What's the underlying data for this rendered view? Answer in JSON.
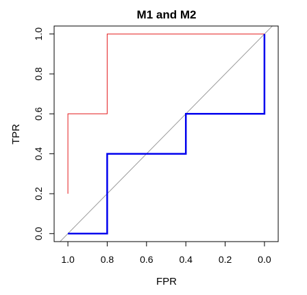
{
  "chart_data": {
    "type": "line",
    "title": "M1 and M2",
    "xlabel": "FPR",
    "ylabel": "TPR",
    "x_reversed": true,
    "xlim": [
      1.07,
      -0.07
    ],
    "ylim": [
      -0.04,
      1.04
    ],
    "x_ticks": [
      1.0,
      0.8,
      0.6,
      0.4,
      0.2,
      0.0
    ],
    "x_tick_labels": [
      "1.0",
      "0.8",
      "0.6",
      "0.4",
      "0.2",
      "0.0"
    ],
    "y_ticks": [
      0.0,
      0.2,
      0.4,
      0.6,
      0.8,
      1.0
    ],
    "y_tick_labels": [
      "0.0",
      "0.2",
      "0.4",
      "0.6",
      "0.8",
      "1.0"
    ],
    "grid": false,
    "series": [
      {
        "color": "#e31a1c",
        "line_width": 1,
        "x": [
          1.0,
          1.0,
          0.8,
          0.8,
          0.0
        ],
        "y": [
          0.2,
          0.6,
          0.6,
          1.0,
          1.0
        ]
      },
      {
        "color": "#0000ee",
        "line_width": 2.5,
        "x": [
          1.0,
          0.8,
          0.8,
          0.4,
          0.4,
          0.0,
          0.0
        ],
        "y": [
          0.0,
          0.0,
          0.4,
          0.4,
          0.6,
          0.6,
          1.0
        ]
      }
    ],
    "reference_line": {
      "color": "#999999",
      "x": [
        1.07,
        -0.07
      ],
      "y": [
        -0.07,
        1.07
      ]
    }
  }
}
